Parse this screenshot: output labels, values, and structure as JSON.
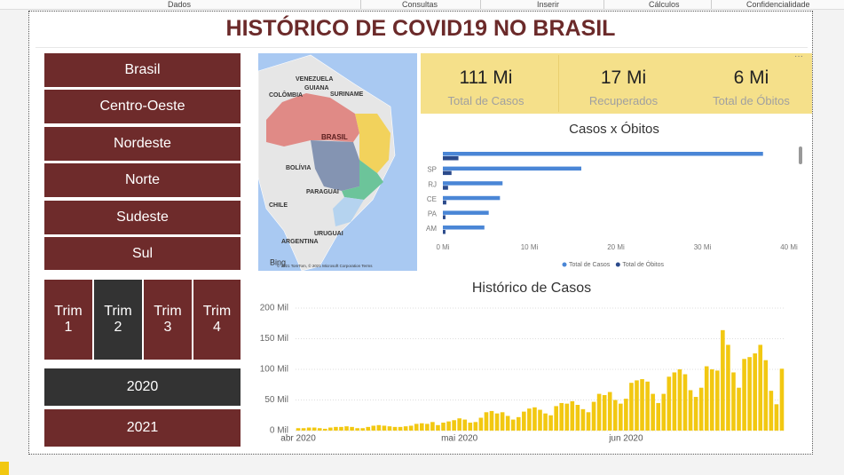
{
  "menu": [
    "Dados",
    "Consultas",
    "Inserir",
    "Cálculos",
    "Confidencialidade"
  ],
  "title": "HISTÓRICO DE COVID19 NO BRASIL",
  "regions": [
    "Brasil",
    "Centro-Oeste",
    "Nordeste",
    "Norte",
    "Sudeste",
    "Sul"
  ],
  "quarters": [
    "Trim 1",
    "Trim 2",
    "Trim 3",
    "Trim 4"
  ],
  "years": [
    "2020",
    "2021"
  ],
  "cards": [
    {
      "value": "111 Mi",
      "label": "Total de Casos"
    },
    {
      "value": "17 Mi",
      "label": "Recuperados"
    },
    {
      "value": "6 Mi",
      "label": "Total de Óbitos"
    }
  ],
  "map": {
    "labels": [
      "VENEZUELA",
      "COLÔMBIA",
      "GUIANA",
      "SURINAME",
      "BRASIL",
      "BOLÍVIA",
      "PARAGUAI",
      "CHILE",
      "URUGUAI",
      "ARGENTINA"
    ],
    "logo": "Bing",
    "attribution": "© 2021 TomTom, © 2021 Microsoft Corporation Terms"
  },
  "chart_data": [
    {
      "type": "bar",
      "orientation": "horizontal",
      "title": "Casos x Óbitos",
      "categories": [
        null,
        "SP",
        "RJ",
        "CE",
        "PA",
        "AM"
      ],
      "series": [
        {
          "name": "Total de Casos",
          "color": "#4a86d6",
          "values": [
            37,
            16,
            6.9,
            6.6,
            5.3,
            4.8
          ]
        },
        {
          "name": "Total de Óbitos",
          "color": "#2b4a8b",
          "values": [
            1.8,
            1.0,
            0.6,
            0.4,
            0.3,
            0.3
          ]
        }
      ],
      "xlim": [
        0,
        40
      ],
      "xticks": [
        {
          "value": 0,
          "label": "0 Mi"
        },
        {
          "value": 10,
          "label": "10 Mi"
        },
        {
          "value": 20,
          "label": "20 Mi"
        },
        {
          "value": 30,
          "label": "30 Mi"
        },
        {
          "value": 40,
          "label": "40 Mi"
        }
      ],
      "legend": "bottom"
    },
    {
      "type": "bar",
      "orientation": "vertical",
      "title": "Histórico de Casos",
      "color": "#f2c811",
      "categories": [
        "abr 2020",
        null,
        null,
        null,
        null,
        null,
        null,
        null,
        null,
        null,
        null,
        null,
        null,
        null,
        null,
        null,
        null,
        null,
        null,
        null,
        null,
        null,
        null,
        null,
        null,
        null,
        null,
        null,
        null,
        null,
        "mai 2020",
        null,
        null,
        null,
        null,
        null,
        null,
        null,
        null,
        null,
        null,
        null,
        null,
        null,
        null,
        null,
        null,
        null,
        null,
        null,
        null,
        null,
        null,
        null,
        null,
        null,
        null,
        null,
        null,
        null,
        null,
        "jun 2020",
        null,
        null,
        null,
        null,
        null,
        null,
        null,
        null,
        null,
        null,
        null,
        null,
        null,
        null,
        null,
        null,
        null,
        null,
        null,
        null,
        null,
        null,
        null,
        null,
        null,
        null,
        null,
        null,
        null
      ],
      "values": [
        4,
        4,
        5,
        5,
        4,
        3,
        5,
        6,
        6,
        7,
        6,
        4,
        4,
        6,
        8,
        9,
        8,
        7,
        6,
        6,
        7,
        8,
        11,
        12,
        11,
        14,
        9,
        13,
        15,
        17,
        20,
        18,
        13,
        14,
        21,
        30,
        32,
        28,
        30,
        24,
        18,
        22,
        31,
        36,
        38,
        34,
        28,
        25,
        40,
        45,
        44,
        48,
        42,
        35,
        30,
        47,
        60,
        58,
        63,
        50,
        44,
        52,
        78,
        82,
        84,
        80,
        60,
        45,
        60,
        88,
        95,
        100,
        92,
        66,
        55,
        70,
        105,
        100,
        98,
        164,
        140,
        95,
        70,
        117,
        120,
        126,
        140,
        115,
        65,
        43,
        101
      ],
      "ylim": [
        0,
        200
      ],
      "yticks": [
        {
          "value": 0,
          "label": "0 Mil"
        },
        {
          "value": 50,
          "label": "50 Mil"
        },
        {
          "value": 100,
          "label": "100 Mil"
        },
        {
          "value": 150,
          "label": "150 Mil"
        },
        {
          "value": 200,
          "label": "200 Mil"
        }
      ],
      "grid": true
    }
  ]
}
